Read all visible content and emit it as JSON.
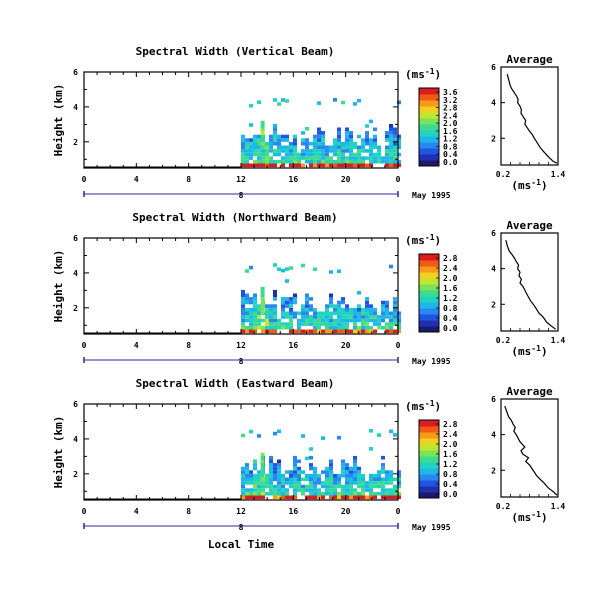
{
  "shared": {
    "x_ticks": [
      "0",
      "4",
      "8",
      "12",
      "16",
      "20",
      "0"
    ],
    "day_label": "8",
    "date_label": "May 1995",
    "ylabel": "Height (km)",
    "y_ticks": [
      "2",
      "4",
      "6"
    ],
    "units_base": "(ms",
    "units_exp": "-1",
    "units_close": ")",
    "average_title": "Average",
    "bottom_xlabel": "Local Time"
  },
  "panels": [
    {
      "title": "Spectral Width (Vertical Beam)",
      "colorbar_ticks": [
        "3.6",
        "3.2",
        "2.8",
        "2.4",
        "2.0",
        "1.6",
        "1.2",
        "0.8",
        "0.4",
        "0.0"
      ],
      "avg_x_ticks": [
        "0.2",
        "1.4"
      ]
    },
    {
      "title": "Spectral Width (Northward Beam)",
      "colorbar_ticks": [
        "2.8",
        "2.4",
        "2.0",
        "1.6",
        "1.2",
        "0.8",
        "0.4",
        "0.0"
      ],
      "avg_x_ticks": [
        "0.2",
        "1.4"
      ]
    },
    {
      "title": "Spectral Width (Eastward Beam)",
      "colorbar_ticks": [
        "2.8",
        "2.4",
        "2.0",
        "1.6",
        "1.2",
        "0.8",
        "0.4",
        "0.0"
      ],
      "avg_x_ticks": [
        "0.2",
        "1.4"
      ]
    }
  ],
  "chart_data": [
    {
      "type": "heatmap",
      "title": "Spectral Width (Vertical Beam)",
      "xlabel": "",
      "ylabel": "Height (km)",
      "xlim": [
        0,
        24
      ],
      "ylim": [
        0.5,
        6
      ],
      "colorbar_range": [
        0.0,
        3.6
      ],
      "data_start_hour": 12,
      "notes_visible": "echoes mostly below ~2.5 km after 12 LT, sparse layer near 4 km",
      "profile": {
        "type": "line",
        "title": "Average",
        "xlim": [
          0.2,
          1.4
        ],
        "ylim": [
          0.5,
          6
        ],
        "x": [
          0.33,
          0.36,
          0.39,
          0.42,
          0.47,
          0.52,
          0.56,
          0.55,
          0.6,
          0.63,
          0.62,
          0.67,
          0.72,
          0.7,
          0.75,
          0.8,
          0.86,
          0.9,
          0.95,
          1.02,
          1.08,
          1.15,
          1.22,
          1.3,
          1.38
        ],
        "y": [
          5.6,
          5.3,
          5.0,
          4.8,
          4.6,
          4.4,
          4.2,
          4.0,
          3.8,
          3.6,
          3.4,
          3.2,
          3.0,
          2.8,
          2.6,
          2.4,
          2.2,
          2.0,
          1.8,
          1.5,
          1.3,
          1.1,
          0.9,
          0.7,
          0.6
        ]
      }
    },
    {
      "type": "heatmap",
      "title": "Spectral Width (Northward Beam)",
      "xlabel": "",
      "ylabel": "Height (km)",
      "xlim": [
        0,
        24
      ],
      "ylim": [
        0.5,
        6
      ],
      "colorbar_range": [
        0.0,
        2.8
      ],
      "data_start_hour": 12,
      "profile": {
        "type": "line",
        "title": "Average",
        "xlim": [
          0.2,
          1.4
        ],
        "ylim": [
          0.5,
          6
        ],
        "x": [
          0.3,
          0.33,
          0.37,
          0.43,
          0.48,
          0.52,
          0.57,
          0.55,
          0.6,
          0.58,
          0.63,
          0.6,
          0.66,
          0.7,
          0.74,
          0.78,
          0.82,
          0.88,
          0.93,
          1.0,
          1.08,
          1.16,
          1.25,
          1.35
        ],
        "y": [
          5.6,
          5.3,
          5.0,
          4.8,
          4.6,
          4.4,
          4.2,
          4.0,
          3.8,
          3.6,
          3.4,
          3.2,
          3.0,
          2.8,
          2.6,
          2.4,
          2.2,
          2.0,
          1.8,
          1.5,
          1.3,
          1.0,
          0.8,
          0.6
        ]
      }
    },
    {
      "type": "heatmap",
      "title": "Spectral Width (Eastward Beam)",
      "xlabel": "Local Time",
      "ylabel": "Height (km)",
      "xlim": [
        0,
        24
      ],
      "ylim": [
        0.5,
        6
      ],
      "colorbar_range": [
        0.0,
        2.8
      ],
      "data_start_hour": 12,
      "profile": {
        "type": "line",
        "title": "Average",
        "xlim": [
          0.2,
          1.4
        ],
        "ylim": [
          0.5,
          6
        ],
        "x": [
          0.28,
          0.32,
          0.36,
          0.42,
          0.45,
          0.5,
          0.47,
          0.52,
          0.56,
          0.6,
          0.7,
          0.62,
          0.66,
          0.78,
          0.72,
          0.8,
          0.85,
          0.9,
          0.95,
          1.02,
          1.1,
          1.2,
          1.3,
          1.38
        ],
        "y": [
          5.6,
          5.3,
          5.0,
          4.8,
          4.6,
          4.4,
          4.2,
          4.0,
          3.8,
          3.6,
          3.3,
          3.1,
          2.9,
          2.7,
          2.5,
          2.3,
          2.1,
          1.9,
          1.7,
          1.5,
          1.3,
          1.0,
          0.8,
          0.6
        ]
      }
    }
  ]
}
